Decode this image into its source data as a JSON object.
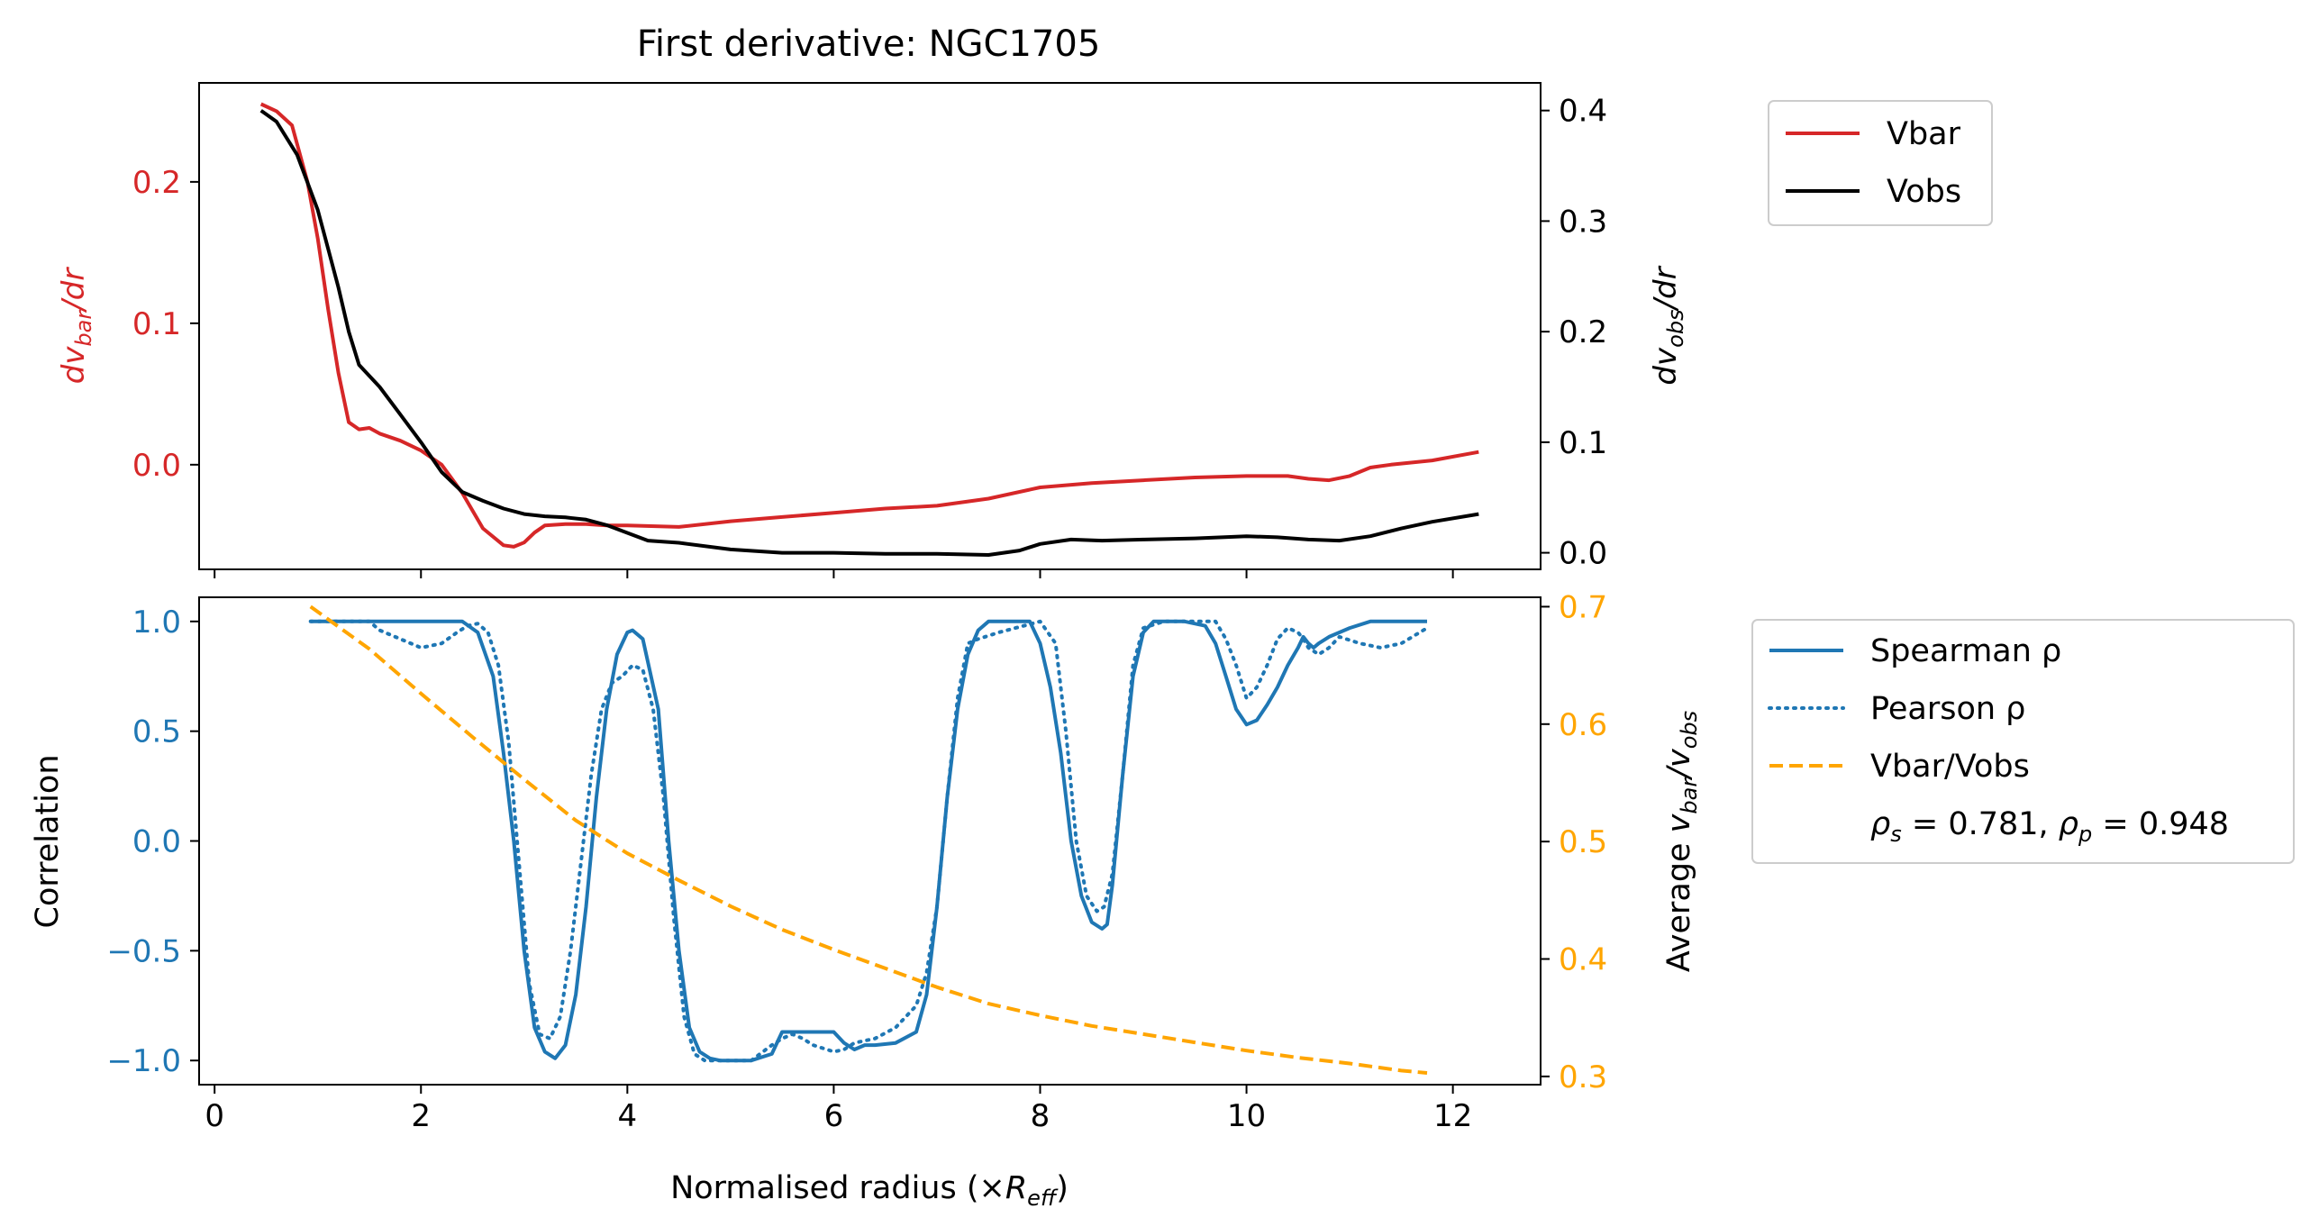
{
  "figure": {
    "title": "First derivative: NGC1705"
  },
  "colors": {
    "vbar": "#d62728",
    "vobs": "#000000",
    "corr": "#1f77b4",
    "ratio": "#ffa500",
    "axis": "#000000"
  },
  "chart_data": [
    {
      "type": "line",
      "title": "First derivative: NGC1705",
      "xlim": [
        -0.15,
        12.85
      ],
      "xticks": [
        0,
        2,
        4,
        6,
        8,
        10,
        12
      ],
      "show_xtick_labels": false,
      "left_axis": {
        "label_parts": [
          "dv",
          "bar",
          "/dr"
        ],
        "ylim": [
          -0.074,
          0.27
        ],
        "ticks": [
          0.0,
          0.1,
          0.2
        ],
        "tick_labels": [
          "0.0",
          "0.1",
          "0.2"
        ],
        "color": "#d62728"
      },
      "right_axis": {
        "label_parts": [
          "dv",
          "obs",
          "/dr"
        ],
        "ylim": [
          -0.015,
          0.425
        ],
        "ticks": [
          0.0,
          0.1,
          0.2,
          0.3,
          0.4
        ],
        "tick_labels": [
          "0.0",
          "0.1",
          "0.2",
          "0.3",
          "0.4"
        ],
        "color": "#000000"
      },
      "legend": {
        "placement": "outside-top-right",
        "entries": [
          "Vbar",
          "Vobs"
        ]
      },
      "series": [
        {
          "name": "Vbar",
          "axis": "left",
          "color": "#d62728",
          "style": "solid",
          "x": [
            0.45,
            0.6,
            0.75,
            0.9,
            1.0,
            1.1,
            1.2,
            1.3,
            1.4,
            1.5,
            1.6,
            1.8,
            2.0,
            2.2,
            2.4,
            2.6,
            2.8,
            2.9,
            3.0,
            3.1,
            3.2,
            3.4,
            3.6,
            3.8,
            4.0,
            4.5,
            5.0,
            5.5,
            6.0,
            6.5,
            7.0,
            7.5,
            8.0,
            8.5,
            9.0,
            9.5,
            10.0,
            10.4,
            10.6,
            10.8,
            11.0,
            11.2,
            11.4,
            11.8,
            12.25
          ],
          "y": [
            0.255,
            0.25,
            0.24,
            0.2,
            0.16,
            0.11,
            0.065,
            0.03,
            0.025,
            0.026,
            0.022,
            0.017,
            0.01,
            0.0,
            -0.02,
            -0.045,
            -0.057,
            -0.058,
            -0.055,
            -0.048,
            -0.043,
            -0.042,
            -0.042,
            -0.043,
            -0.043,
            -0.044,
            -0.04,
            -0.037,
            -0.034,
            -0.031,
            -0.029,
            -0.024,
            -0.016,
            -0.013,
            -0.011,
            -0.009,
            -0.008,
            -0.008,
            -0.01,
            -0.011,
            -0.008,
            -0.002,
            0.0,
            0.003,
            0.009
          ]
        },
        {
          "name": "Vobs",
          "axis": "right",
          "color": "#000000",
          "style": "solid",
          "x": [
            0.45,
            0.6,
            0.8,
            1.0,
            1.1,
            1.2,
            1.3,
            1.4,
            1.6,
            1.8,
            2.0,
            2.2,
            2.4,
            2.6,
            2.8,
            3.0,
            3.2,
            3.4,
            3.6,
            3.8,
            4.0,
            4.2,
            4.5,
            5.0,
            5.5,
            6.0,
            6.5,
            7.0,
            7.5,
            7.8,
            8.0,
            8.3,
            8.6,
            9.0,
            9.5,
            10.0,
            10.3,
            10.6,
            10.9,
            11.2,
            11.5,
            11.8,
            12.25
          ],
          "y": [
            0.4,
            0.39,
            0.36,
            0.31,
            0.275,
            0.24,
            0.2,
            0.17,
            0.15,
            0.125,
            0.1,
            0.073,
            0.055,
            0.047,
            0.04,
            0.035,
            0.033,
            0.032,
            0.03,
            0.025,
            0.018,
            0.011,
            0.009,
            0.003,
            0.0,
            0.0,
            -0.001,
            -0.001,
            -0.002,
            0.002,
            0.008,
            0.012,
            0.011,
            0.012,
            0.013,
            0.015,
            0.014,
            0.012,
            0.011,
            0.015,
            0.022,
            0.028,
            0.035
          ]
        }
      ]
    },
    {
      "type": "line",
      "xlabel_parts": [
        "Normalised radius (×",
        "R",
        "eff",
        ")"
      ],
      "xlim": [
        -0.15,
        12.85
      ],
      "xticks": [
        0,
        2,
        4,
        6,
        8,
        10,
        12
      ],
      "xtick_labels": [
        "0",
        "2",
        "4",
        "6",
        "8",
        "10",
        "12"
      ],
      "left_axis": {
        "label": "Correlation",
        "ylim": [
          -1.11,
          1.11
        ],
        "ticks": [
          -1.0,
          -0.5,
          0.0,
          0.5,
          1.0
        ],
        "tick_labels": [
          "−1.0",
          "−0.5",
          "0.0",
          "0.5",
          "1.0"
        ],
        "color": "#1f77b4"
      },
      "right_axis": {
        "label_parts": [
          "Average ",
          "v",
          "bar",
          "/",
          "v",
          "obs"
        ],
        "ylim": [
          0.293,
          0.708
        ],
        "ticks": [
          0.3,
          0.4,
          0.5,
          0.6,
          0.7
        ],
        "tick_labels": [
          "0.3",
          "0.4",
          "0.5",
          "0.6",
          "0.7"
        ],
        "color": "#ffa500"
      },
      "legend": {
        "placement": "outside-right",
        "entries": [
          "Spearman ρ",
          "Pearson ρ",
          "Vbar/Vobs"
        ],
        "annotation": {
          "rho_s": "0.781",
          "rho_p": "0.948"
        }
      },
      "series": [
        {
          "name": "Spearman ρ",
          "axis": "left",
          "color": "#1f77b4",
          "style": "solid",
          "x": [
            0.93,
            2.4,
            2.55,
            2.7,
            2.8,
            2.9,
            3.0,
            3.1,
            3.2,
            3.3,
            3.4,
            3.5,
            3.6,
            3.7,
            3.8,
            3.9,
            4.0,
            4.05,
            4.15,
            4.3,
            4.4,
            4.5,
            4.6,
            4.7,
            4.8,
            4.9,
            5.0,
            5.2,
            5.4,
            5.5,
            5.6,
            6.0,
            6.1,
            6.2,
            6.3,
            6.4,
            6.6,
            6.8,
            6.9,
            7.0,
            7.1,
            7.2,
            7.3,
            7.4,
            7.5,
            7.6,
            7.9,
            8.0,
            8.1,
            8.2,
            8.3,
            8.4,
            8.5,
            8.6,
            8.65,
            8.7,
            8.8,
            8.9,
            9.0,
            9.1,
            9.2,
            9.4,
            9.6,
            9.7,
            9.8,
            9.9,
            10.0,
            10.1,
            10.2,
            10.3,
            10.4,
            10.5,
            10.55,
            10.6,
            10.65,
            10.7,
            10.8,
            11.0,
            11.2,
            11.75
          ],
          "y": [
            1.0,
            1.0,
            0.95,
            0.75,
            0.4,
            0.0,
            -0.5,
            -0.85,
            -0.96,
            -0.99,
            -0.93,
            -0.7,
            -0.3,
            0.2,
            0.6,
            0.85,
            0.95,
            0.96,
            0.92,
            0.6,
            0.0,
            -0.5,
            -0.85,
            -0.96,
            -0.99,
            -1.0,
            -1.0,
            -1.0,
            -0.97,
            -0.87,
            -0.87,
            -0.87,
            -0.92,
            -0.95,
            -0.93,
            -0.93,
            -0.92,
            -0.87,
            -0.7,
            -0.3,
            0.2,
            0.6,
            0.85,
            0.96,
            1.0,
            1.0,
            1.0,
            0.9,
            0.7,
            0.4,
            0.0,
            -0.25,
            -0.37,
            -0.4,
            -0.38,
            -0.2,
            0.3,
            0.75,
            0.95,
            1.0,
            1.0,
            1.0,
            0.98,
            0.9,
            0.75,
            0.6,
            0.53,
            0.55,
            0.62,
            0.7,
            0.8,
            0.88,
            0.93,
            0.9,
            0.88,
            0.9,
            0.93,
            0.97,
            1.0,
            1.0
          ]
        },
        {
          "name": "Pearson ρ",
          "axis": "left",
          "color": "#1f77b4",
          "style": "dotted",
          "x": [
            0.93,
            1.5,
            1.6,
            1.8,
            2.0,
            2.2,
            2.35,
            2.45,
            2.55,
            2.65,
            2.75,
            2.85,
            2.95,
            3.05,
            3.15,
            3.25,
            3.35,
            3.45,
            3.55,
            3.65,
            3.75,
            3.85,
            3.95,
            4.05,
            4.15,
            4.25,
            4.35,
            4.45,
            4.55,
            4.65,
            4.75,
            4.85,
            5.0,
            5.2,
            5.4,
            5.5,
            5.6,
            5.7,
            5.8,
            6.0,
            6.1,
            6.2,
            6.4,
            6.6,
            6.8,
            6.9,
            7.0,
            7.1,
            7.2,
            7.3,
            7.4,
            7.6,
            8.0,
            8.15,
            8.25,
            8.35,
            8.45,
            8.55,
            8.62,
            8.7,
            8.8,
            8.9,
            9.0,
            9.2,
            9.5,
            9.7,
            9.8,
            9.9,
            10.0,
            10.1,
            10.2,
            10.3,
            10.4,
            10.5,
            10.55,
            10.6,
            10.7,
            10.8,
            10.9,
            11.1,
            11.3,
            11.5,
            11.75
          ],
          "y": [
            1.0,
            1.0,
            0.96,
            0.92,
            0.88,
            0.9,
            0.95,
            0.98,
            0.99,
            0.95,
            0.8,
            0.45,
            -0.1,
            -0.65,
            -0.88,
            -0.9,
            -0.8,
            -0.5,
            -0.1,
            0.3,
            0.6,
            0.72,
            0.75,
            0.8,
            0.78,
            0.6,
            0.2,
            -0.35,
            -0.8,
            -0.97,
            -1.0,
            -1.0,
            -1.0,
            -1.0,
            -0.93,
            -0.9,
            -0.88,
            -0.9,
            -0.93,
            -0.96,
            -0.95,
            -0.92,
            -0.9,
            -0.85,
            -0.75,
            -0.6,
            -0.3,
            0.2,
            0.65,
            0.9,
            0.92,
            0.95,
            1.0,
            0.9,
            0.5,
            0.0,
            -0.25,
            -0.32,
            -0.3,
            -0.15,
            0.3,
            0.8,
            0.97,
            1.0,
            1.0,
            1.0,
            0.92,
            0.8,
            0.65,
            0.7,
            0.8,
            0.92,
            0.97,
            0.95,
            0.92,
            0.88,
            0.85,
            0.88,
            0.93,
            0.9,
            0.88,
            0.9,
            0.97
          ]
        },
        {
          "name": "Vbar/Vobs",
          "axis": "right",
          "color": "#ffa500",
          "style": "dashed",
          "x": [
            0.93,
            1.5,
            2.0,
            2.5,
            3.0,
            3.5,
            4.0,
            4.5,
            5.0,
            5.5,
            6.0,
            6.5,
            7.0,
            7.5,
            8.0,
            8.5,
            9.0,
            9.5,
            10.0,
            10.5,
            11.0,
            11.5,
            11.75
          ],
          "y": [
            0.7,
            0.664,
            0.626,
            0.589,
            0.553,
            0.518,
            0.49,
            0.467,
            0.445,
            0.425,
            0.408,
            0.392,
            0.376,
            0.362,
            0.352,
            0.343,
            0.336,
            0.329,
            0.322,
            0.316,
            0.311,
            0.305,
            0.303
          ]
        }
      ]
    }
  ]
}
